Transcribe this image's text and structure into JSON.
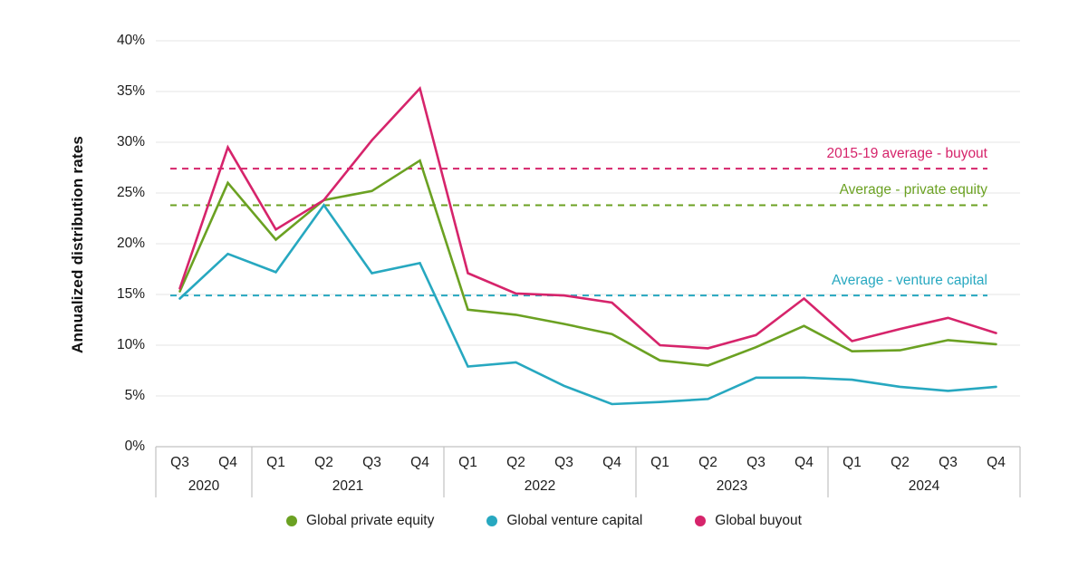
{
  "chart_data": {
    "type": "line",
    "title": "",
    "ylabel": "Annualized distribution rates",
    "ylim": [
      0,
      40
    ],
    "grid": true,
    "legend_position": "bottom",
    "y_ticks": [
      {
        "label": "0%",
        "value": 0
      },
      {
        "label": "5%",
        "value": 5
      },
      {
        "label": "10%",
        "value": 10
      },
      {
        "label": "15%",
        "value": 15
      },
      {
        "label": "20%",
        "value": 20
      },
      {
        "label": "25%",
        "value": 25
      },
      {
        "label": "30%",
        "value": 30
      },
      {
        "label": "35%",
        "value": 35
      },
      {
        "label": "40%",
        "value": 40
      }
    ],
    "x_groups": [
      {
        "year": "2020",
        "quarters": [
          "Q3",
          "Q4"
        ]
      },
      {
        "year": "2021",
        "quarters": [
          "Q1",
          "Q2",
          "Q3",
          "Q4"
        ]
      },
      {
        "year": "2022",
        "quarters": [
          "Q1",
          "Q2",
          "Q3",
          "Q4"
        ]
      },
      {
        "year": "2023",
        "quarters": [
          "Q1",
          "Q2",
          "Q3",
          "Q4"
        ]
      },
      {
        "year": "2024",
        "quarters": [
          "Q1",
          "Q2",
          "Q3",
          "Q4"
        ]
      }
    ],
    "categories": [
      "Q3 2020",
      "Q4 2020",
      "Q1 2021",
      "Q2 2021",
      "Q3 2021",
      "Q4 2021",
      "Q1 2022",
      "Q2 2022",
      "Q3 2022",
      "Q4 2022",
      "Q1 2023",
      "Q2 2023",
      "Q3 2023",
      "Q4 2023",
      "Q1 2024",
      "Q2 2024",
      "Q3 2024",
      "Q4 2024"
    ],
    "series": [
      {
        "name": "Global private equity",
        "color": "#6ba122",
        "values": [
          15.3,
          26.0,
          20.4,
          24.3,
          25.2,
          28.2,
          13.5,
          13.0,
          12.1,
          11.1,
          8.5,
          8.0,
          9.8,
          11.9,
          9.4,
          9.5,
          10.5,
          10.1
        ]
      },
      {
        "name": "Global venture capital",
        "color": "#27a8c0",
        "values": [
          14.6,
          19.0,
          17.2,
          23.8,
          17.1,
          18.1,
          7.9,
          8.3,
          6.0,
          4.2,
          4.4,
          4.7,
          6.8,
          6.8,
          6.6,
          5.9,
          5.5,
          5.9
        ]
      },
      {
        "name": "Global buyout",
        "color": "#d6246b",
        "values": [
          15.6,
          29.5,
          21.4,
          24.3,
          30.2,
          35.3,
          17.1,
          15.1,
          14.9,
          14.2,
          10.0,
          9.7,
          11.0,
          14.6,
          10.4,
          11.6,
          12.7,
          11.2
        ]
      }
    ],
    "reference_lines": [
      {
        "label": "2015-19 average - buyout",
        "value": 27.4,
        "color": "#d6246b"
      },
      {
        "label": "Average - private equity",
        "value": 23.8,
        "color": "#6ba122"
      },
      {
        "label": "Average - venture capital",
        "value": 14.9,
        "color": "#27a8c0"
      }
    ],
    "style_colors": {
      "gridline": "#ebebeb",
      "axis_table_line": "#c2c2c2",
      "text": "#1c1c1c"
    }
  }
}
